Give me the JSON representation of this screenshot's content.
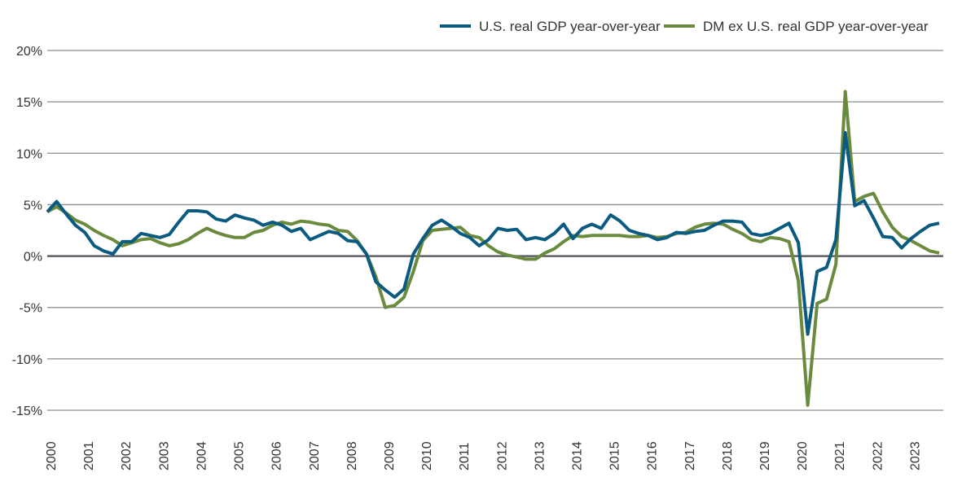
{
  "chart_data": {
    "type": "line",
    "title": "",
    "xlabel": "",
    "ylabel": "",
    "ylim": [
      -15,
      20
    ],
    "yticks": [
      "20%",
      "15%",
      "10%",
      "5%",
      "0%",
      "-5%",
      "-10%",
      "-15%"
    ],
    "ytick_values": [
      20,
      15,
      10,
      5,
      0,
      -5,
      -10,
      -15
    ],
    "xticks": [
      "2000",
      "2001",
      "2002",
      "2003",
      "2004",
      "2005",
      "2006",
      "2007",
      "2008",
      "2009",
      "2010",
      "2011",
      "2012",
      "2013",
      "2014",
      "2015",
      "2016",
      "2017",
      "2018",
      "2019",
      "2020",
      "2021",
      "2022",
      "2023"
    ],
    "x_frequency": "quarterly",
    "x_start": "2000",
    "grid": "horizontal",
    "legend_position": "top-right",
    "series": [
      {
        "name": "U.S. real GDP year-over-year",
        "color": "#0b5a80",
        "values": [
          4.3,
          5.3,
          4.1,
          3.0,
          2.3,
          1.0,
          0.5,
          0.2,
          1.4,
          1.4,
          2.2,
          2.0,
          1.8,
          2.1,
          3.3,
          4.4,
          4.4,
          4.3,
          3.6,
          3.4,
          4.0,
          3.7,
          3.5,
          3.0,
          3.3,
          3.0,
          2.4,
          2.7,
          1.6,
          2.0,
          2.4,
          2.2,
          1.5,
          1.4,
          0.2,
          -2.5,
          -3.3,
          -4.0,
          -3.2,
          0.2,
          1.7,
          3.0,
          3.5,
          2.9,
          2.2,
          1.8,
          1.0,
          1.6,
          2.7,
          2.5,
          2.6,
          1.6,
          1.8,
          1.6,
          2.2,
          3.1,
          1.7,
          2.7,
          3.1,
          2.7,
          4.0,
          3.4,
          2.5,
          2.2,
          2.0,
          1.6,
          1.8,
          2.3,
          2.2,
          2.4,
          2.5,
          3.0,
          3.4,
          3.4,
          3.3,
          2.2,
          2.0,
          2.2,
          2.7,
          3.2,
          1.3,
          -7.6,
          -1.5,
          -1.1,
          1.6,
          12.0,
          4.9,
          5.4,
          3.7,
          1.9,
          1.8,
          0.8,
          1.7,
          2.4,
          3.0,
          3.2
        ]
      },
      {
        "name": "DM ex U.S. real GDP year-over-year",
        "color": "#6a8a3e",
        "values": [
          4.3,
          4.8,
          4.2,
          3.5,
          3.1,
          2.5,
          2.0,
          1.6,
          1.0,
          1.3,
          1.6,
          1.7,
          1.3,
          1.0,
          1.2,
          1.6,
          2.2,
          2.7,
          2.3,
          2.0,
          1.8,
          1.8,
          2.3,
          2.5,
          3.0,
          3.3,
          3.1,
          3.4,
          3.3,
          3.1,
          3.0,
          2.5,
          2.4,
          1.5,
          0.2,
          -2.0,
          -5.0,
          -4.8,
          -4.0,
          -1.5,
          1.5,
          2.5,
          2.6,
          2.7,
          2.8,
          2.0,
          1.8,
          1.0,
          0.4,
          0.1,
          -0.1,
          -0.3,
          -0.3,
          0.3,
          0.7,
          1.4,
          2.0,
          1.9,
          2.0,
          2.0,
          2.0,
          2.0,
          1.9,
          1.9,
          2.0,
          1.8,
          1.9,
          2.2,
          2.3,
          2.8,
          3.1,
          3.2,
          3.1,
          2.6,
          2.2,
          1.6,
          1.4,
          1.8,
          1.7,
          1.4,
          -2.4,
          -14.5,
          -4.6,
          -4.2,
          -0.8,
          16.0,
          5.3,
          5.8,
          6.1,
          4.3,
          2.8,
          1.9,
          1.5,
          1.0,
          0.5,
          0.3
        ]
      }
    ]
  }
}
